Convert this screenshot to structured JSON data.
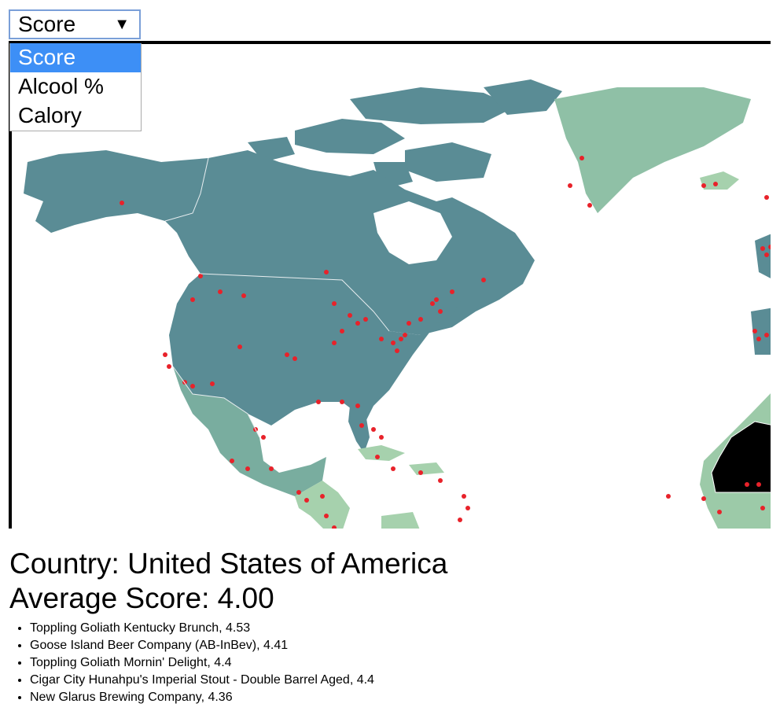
{
  "select": {
    "value": "Score",
    "arrow": "▼",
    "options": [
      "Score",
      "Alcool %",
      "Calory"
    ],
    "selected_index": 0
  },
  "colors": {
    "north_america": "#5a8c95",
    "mexico_central": "#79ad9f",
    "greenland": "#8fc0a6",
    "africa_light": "#9ccaa8",
    "caribbean": "#a6d1ad",
    "selected_country": "#000000",
    "brewery_dot": "#e8222a",
    "ocean": "#ffffff"
  },
  "info": {
    "country_label": "Country: United States of America",
    "average_label": "Average Score: 4.00"
  },
  "beers": [
    {
      "text": "Toppling Goliath Kentucky Brunch, 4.53"
    },
    {
      "text": "Goose Island Beer Company (AB-InBev), 4.41"
    },
    {
      "text": "Toppling Goliath Mornin' Delight, 4.4"
    },
    {
      "text": "Cigar City Hunahpu's Imperial Stout - Double Barrel Aged, 4.4"
    },
    {
      "text": "New Glarus Brewing Company, 4.36"
    }
  ]
}
